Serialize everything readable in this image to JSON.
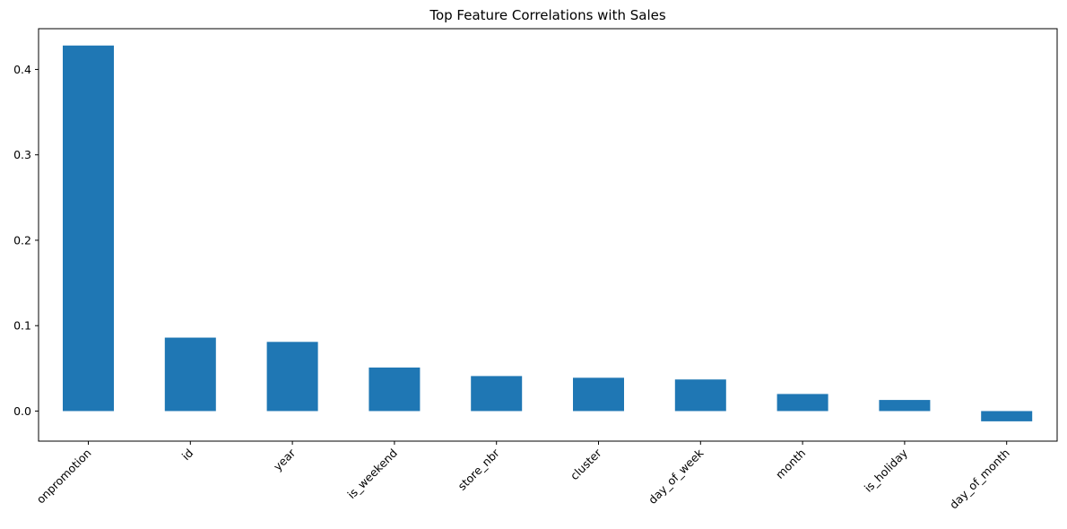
{
  "chart_data": {
    "type": "bar",
    "title": "Top Feature Correlations with Sales",
    "xlabel": "",
    "ylabel": "",
    "categories": [
      "onpromotion",
      "id",
      "year",
      "is_weekend",
      "store_nbr",
      "cluster",
      "day_of_week",
      "month",
      "is_holiday",
      "day_of_month"
    ],
    "values": [
      0.428,
      0.086,
      0.081,
      0.051,
      0.041,
      0.039,
      0.037,
      0.02,
      0.013,
      -0.012
    ],
    "yticks": [
      0.0,
      0.1,
      0.2,
      0.3,
      0.4
    ],
    "ytick_labels": [
      "0.0",
      "0.1",
      "0.2",
      "0.3",
      "0.4"
    ],
    "ylim": [
      -0.0352,
      0.4477
    ],
    "bar_color": "#1f77b4",
    "grid": false,
    "legend": false,
    "xtick_rotation": 45
  }
}
